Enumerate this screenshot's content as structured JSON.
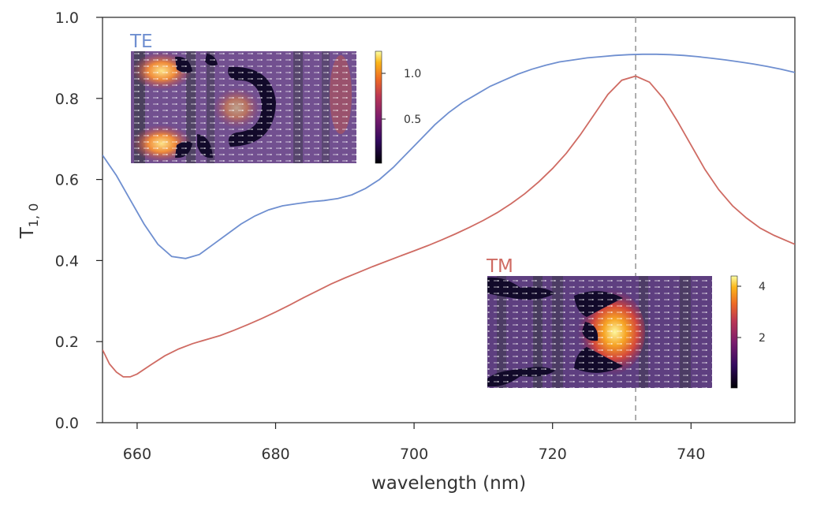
{
  "chart_data": {
    "type": "line",
    "xlabel": "wavelength (nm)",
    "ylabel": "T",
    "ylabel_subscript": "1, 0",
    "xlim": [
      655,
      755
    ],
    "ylim": [
      0.0,
      1.0
    ],
    "xticks": [
      660,
      680,
      700,
      720,
      740
    ],
    "yticks": [
      0.0,
      0.2,
      0.4,
      0.6,
      0.8,
      1.0
    ],
    "xtick_labels": [
      "660",
      "680",
      "700",
      "720",
      "740"
    ],
    "ytick_labels": [
      "0.0",
      "0.2",
      "0.4",
      "0.6",
      "0.8",
      "1.0"
    ],
    "grid": false,
    "vline": {
      "x": 732,
      "style": "dashed",
      "color": "#999999"
    },
    "series": [
      {
        "name": "TE",
        "color": "#6f8fd0",
        "x": [
          655,
          657,
          659,
          661,
          663,
          665,
          667,
          669,
          671,
          673,
          675,
          677,
          679,
          681,
          683,
          685,
          687,
          689,
          691,
          693,
          695,
          697,
          699,
          701,
          703,
          705,
          707,
          709,
          711,
          713,
          715,
          717,
          719,
          721,
          723,
          725,
          727,
          729,
          731,
          733,
          735,
          737,
          739,
          741,
          743,
          745,
          747,
          749,
          751,
          753,
          755
        ],
        "values": [
          0.66,
          0.61,
          0.55,
          0.49,
          0.44,
          0.41,
          0.405,
          0.415,
          0.44,
          0.465,
          0.49,
          0.51,
          0.525,
          0.535,
          0.54,
          0.545,
          0.548,
          0.553,
          0.562,
          0.578,
          0.6,
          0.63,
          0.665,
          0.7,
          0.735,
          0.765,
          0.79,
          0.81,
          0.83,
          0.845,
          0.86,
          0.872,
          0.882,
          0.89,
          0.895,
          0.9,
          0.903,
          0.906,
          0.908,
          0.909,
          0.909,
          0.908,
          0.906,
          0.903,
          0.899,
          0.895,
          0.89,
          0.885,
          0.879,
          0.872,
          0.864
        ]
      },
      {
        "name": "TM",
        "color": "#cf6b63",
        "x": [
          655,
          656,
          657,
          658,
          659,
          660,
          662,
          664,
          666,
          668,
          670,
          672,
          674,
          676,
          678,
          680,
          682,
          684,
          686,
          688,
          690,
          692,
          694,
          696,
          698,
          700,
          702,
          704,
          706,
          708,
          710,
          712,
          714,
          716,
          718,
          720,
          722,
          724,
          726,
          728,
          730,
          732,
          734,
          736,
          738,
          740,
          742,
          744,
          746,
          748,
          750,
          752,
          755
        ],
        "values": [
          0.18,
          0.145,
          0.125,
          0.113,
          0.113,
          0.12,
          0.143,
          0.165,
          0.182,
          0.195,
          0.205,
          0.215,
          0.228,
          0.242,
          0.257,
          0.273,
          0.29,
          0.308,
          0.325,
          0.342,
          0.357,
          0.371,
          0.385,
          0.398,
          0.411,
          0.424,
          0.437,
          0.451,
          0.466,
          0.482,
          0.499,
          0.518,
          0.54,
          0.565,
          0.594,
          0.627,
          0.665,
          0.71,
          0.76,
          0.81,
          0.845,
          0.855,
          0.84,
          0.8,
          0.745,
          0.685,
          0.625,
          0.575,
          0.535,
          0.505,
          0.48,
          0.462,
          0.44
        ]
      }
    ],
    "insets": [
      {
        "name": "TE",
        "color": "#6f8fd0",
        "colorbar_ticks": [
          "1.0",
          "0.5"
        ]
      },
      {
        "name": "TM",
        "color": "#cf6b63",
        "colorbar_ticks": [
          "4",
          "2"
        ]
      }
    ]
  }
}
